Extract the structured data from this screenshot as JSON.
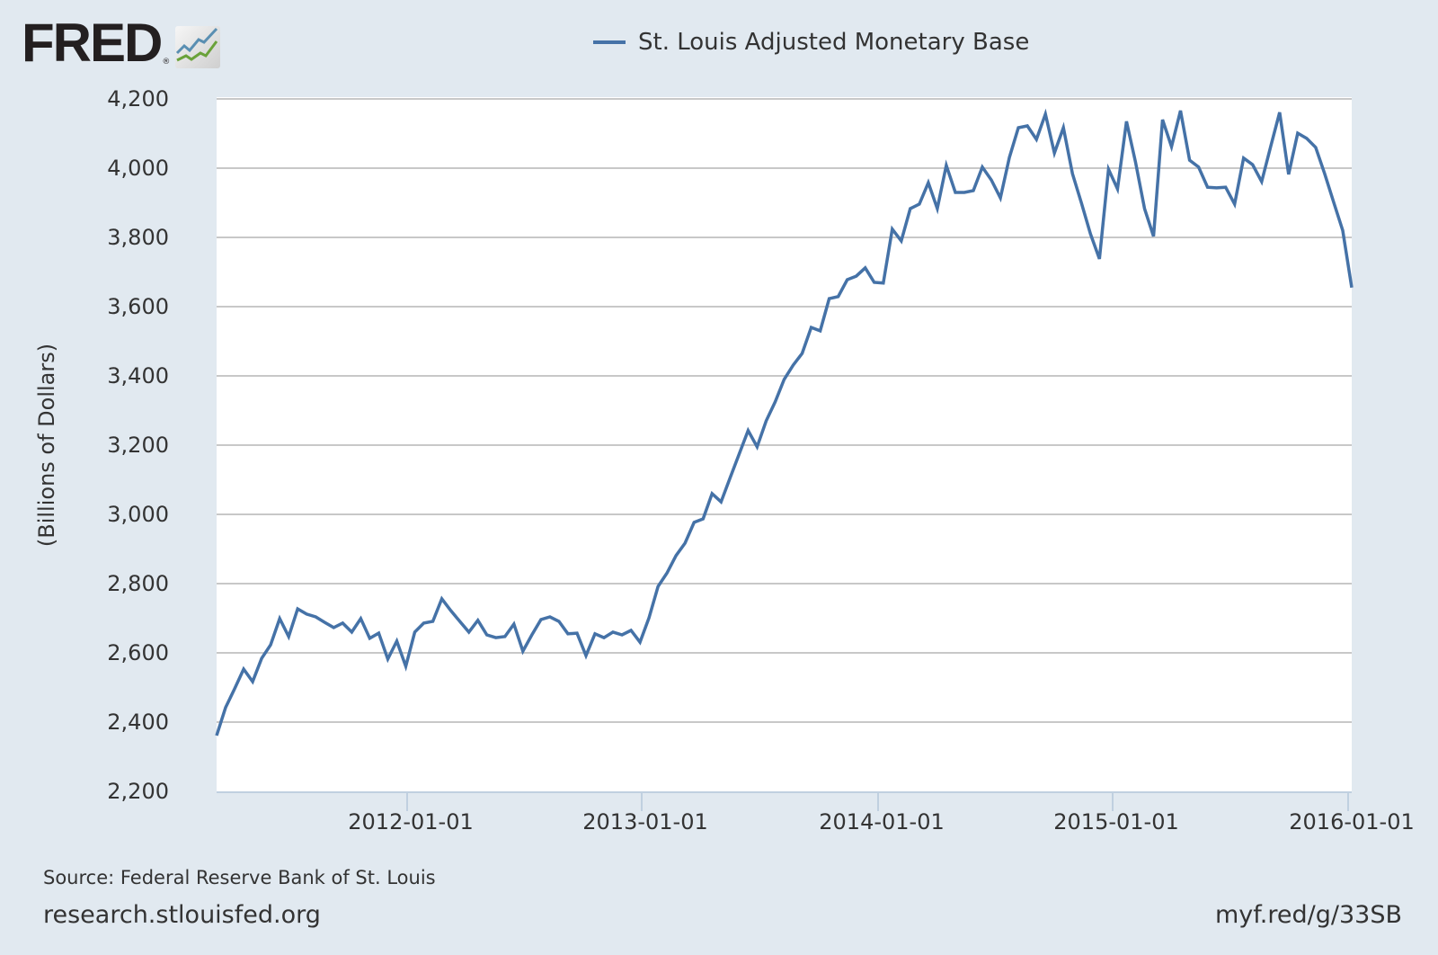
{
  "header": {
    "logo_text": "FRED",
    "logo_registered": "®",
    "logo_icon": "line-chart-icon"
  },
  "legend": {
    "label": "St. Louis Adjusted Monetary Base",
    "color": "#4572a7"
  },
  "footer": {
    "source": "Source: Federal Reserve Bank of St. Louis",
    "site": "research.stlouisfed.org",
    "short_link": "myf.red/g/33SB"
  },
  "colors": {
    "background": "#e1e9f0",
    "plot_background": "#ffffff",
    "grid": "#c8c8c8",
    "series": "#4572a7"
  },
  "chart_data": {
    "type": "line",
    "title": "St. Louis Adjusted Monetary Base",
    "xlabel": "",
    "ylabel": "(Billions of Dollars)",
    "ylim": [
      2200,
      4200
    ],
    "yticks": [
      "4,200",
      "4,000",
      "3,800",
      "3,600",
      "3,400",
      "3,200",
      "3,000",
      "2,800",
      "2,600",
      "2,400",
      "2,200"
    ],
    "xticks": [
      "2012-01-01",
      "2013-01-01",
      "2014-01-01",
      "2015-01-01",
      "2016-01-01"
    ],
    "xrange": [
      "2011-03-09",
      "2016-01-20"
    ],
    "grid": true,
    "legend_position": "top",
    "frequency": "biweekly",
    "series": [
      {
        "name": "St. Louis Adjusted Monetary Base",
        "color": "#4572a7",
        "values": [
          2361,
          2442,
          2496,
          2553,
          2517,
          2584,
          2623,
          2699,
          2647,
          2727,
          2712,
          2704,
          2688,
          2673,
          2686,
          2660,
          2699,
          2642,
          2657,
          2582,
          2634,
          2561,
          2660,
          2686,
          2691,
          2756,
          2722,
          2691,
          2660,
          2694,
          2652,
          2644,
          2647,
          2683,
          2605,
          2652,
          2696,
          2704,
          2691,
          2655,
          2657,
          2592,
          2655,
          2644,
          2660,
          2652,
          2665,
          2631,
          2701,
          2792,
          2831,
          2881,
          2917,
          2977,
          2987,
          3060,
          3036,
          3106,
          3174,
          3242,
          3195,
          3270,
          3325,
          3390,
          3431,
          3465,
          3540,
          3530,
          3623,
          3629,
          3678,
          3688,
          3712,
          3670,
          3668,
          3824,
          3790,
          3883,
          3896,
          3958,
          3883,
          4008,
          3930,
          3930,
          3935,
          4003,
          3966,
          3914,
          4031,
          4117,
          4122,
          4083,
          4156,
          4044,
          4117,
          3984,
          3899,
          3810,
          3738,
          3997,
          3940,
          4135,
          4018,
          3883,
          3803,
          4140,
          4062,
          4166,
          4023,
          4003,
          3945,
          3943,
          3945,
          3896,
          4029,
          4010,
          3961,
          4062,
          4161,
          3982,
          4101,
          4086,
          4060,
          3984,
          3901,
          3820,
          3655
        ]
      }
    ]
  }
}
